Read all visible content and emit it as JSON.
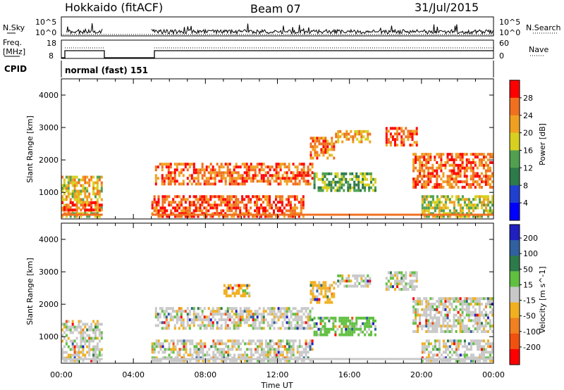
{
  "header": {
    "station": "Hokkaido (fitACF)",
    "beam": "Beam 07",
    "date": "31/Jul/2015"
  },
  "noise_panel": {
    "left_label": "N.Sky",
    "right_label": "N.Search",
    "left_ticks": [
      "10^5",
      "10^0"
    ],
    "right_ticks": [
      "10^5",
      "10^0"
    ]
  },
  "freq_panel": {
    "left_label_1": "Freq.",
    "left_label_2": "[MHz]",
    "left_ticks": [
      "18",
      "8"
    ],
    "right_ticks": [
      "60",
      "0"
    ],
    "right_label": "Nave"
  },
  "cpid_panel": {
    "label": "CPID",
    "program": "normal (fast) 151"
  },
  "chart_data": [
    {
      "type": "heatmap",
      "quantity": "Power",
      "ylabel": "Slant Range [km]",
      "yticks": [
        1000,
        2000,
        3000,
        4000
      ],
      "ylim": [
        180,
        4500
      ],
      "colorbar_label": "Power [dB]",
      "colorbar_ticks": [
        4,
        8,
        12,
        16,
        20,
        24,
        28
      ],
      "colorbar_range": [
        0,
        32
      ],
      "colorbar_colors": [
        "#0000ff",
        "#2040d0",
        "#2d7a4a",
        "#50a050",
        "#d8d020",
        "#f0a020",
        "#f07020",
        "#ff0000"
      ],
      "xticks": [
        "00:00",
        "04:00",
        "08:00",
        "12:00",
        "16:00",
        "20:00",
        "00:00"
      ],
      "data_gap_hours": [
        2.3,
        5.0
      ],
      "echo_regions": [
        {
          "t0": 0.0,
          "t1": 2.3,
          "r0": 300,
          "r1": 1600,
          "level": 20
        },
        {
          "t0": 0.0,
          "t1": 2.3,
          "r0": 500,
          "r1": 800,
          "level": 28
        },
        {
          "t0": 5.0,
          "t1": 8.0,
          "r0": 300,
          "r1": 1000,
          "level": 28
        },
        {
          "t0": 5.2,
          "t1": 14.0,
          "r0": 1300,
          "r1": 2000,
          "level": 26
        },
        {
          "t0": 8.0,
          "t1": 13.5,
          "r0": 300,
          "r1": 1000,
          "level": 27
        },
        {
          "t0": 13.8,
          "t1": 15.2,
          "r0": 2100,
          "r1": 2800,
          "level": 24
        },
        {
          "t0": 15.2,
          "t1": 17.2,
          "r0": 2600,
          "r1": 3000,
          "level": 22
        },
        {
          "t0": 14.0,
          "t1": 17.5,
          "r0": 1100,
          "r1": 1700,
          "level": 14
        },
        {
          "t0": 18.0,
          "t1": 19.8,
          "r0": 2500,
          "r1": 3100,
          "level": 26
        },
        {
          "t0": 19.5,
          "t1": 24.0,
          "r0": 1200,
          "r1": 2300,
          "level": 26
        },
        {
          "t0": 20.0,
          "t1": 24.0,
          "r0": 300,
          "r1": 1000,
          "level": 18
        }
      ]
    },
    {
      "type": "heatmap",
      "quantity": "Velocity",
      "ylabel": "Slant Range [km]",
      "yticks": [
        1000,
        2000,
        3000,
        4000
      ],
      "ylim": [
        180,
        4500
      ],
      "xlabel": "Time UT",
      "colorbar_label": "Velocity [m s^-1]",
      "colorbar_ticks": [
        "200",
        "100",
        "50",
        "15",
        "-15",
        "-50",
        "-100",
        "-200"
      ],
      "colorbar_colors": [
        "#2020c0",
        "#3060a0",
        "#2d7a4a",
        "#60c040",
        "#c8c8c8",
        "#f0b020",
        "#f08020",
        "#f05010",
        "#ff0000"
      ],
      "xticks": [
        "00:00",
        "04:00",
        "08:00",
        "12:00",
        "16:00",
        "20:00",
        "00:00"
      ],
      "data_gap_hours": [
        2.3,
        5.0
      ],
      "echo_regions": [
        {
          "t0": 0.0,
          "t1": 2.3,
          "r0": 300,
          "r1": 1600,
          "level": 0
        },
        {
          "t0": 5.0,
          "t1": 14.0,
          "r0": 300,
          "r1": 1000,
          "level": 0
        },
        {
          "t0": 5.2,
          "t1": 14.0,
          "r0": 1300,
          "r1": 2000,
          "level": 0
        },
        {
          "t0": 9.0,
          "t1": 10.5,
          "r0": 2300,
          "r1": 2700,
          "level": -30
        },
        {
          "t0": 13.8,
          "t1": 15.2,
          "r0": 2100,
          "r1": 2800,
          "level": -30
        },
        {
          "t0": 15.2,
          "t1": 17.2,
          "r0": 2600,
          "r1": 3000,
          "level": 0
        },
        {
          "t0": 14.0,
          "t1": 17.5,
          "r0": 1100,
          "r1": 1700,
          "level": 30
        },
        {
          "t0": 18.0,
          "t1": 19.8,
          "r0": 2500,
          "r1": 3100,
          "level": 0
        },
        {
          "t0": 19.5,
          "t1": 24.0,
          "r0": 1200,
          "r1": 2300,
          "level": 0
        },
        {
          "t0": 20.0,
          "t1": 24.0,
          "r0": 300,
          "r1": 1000,
          "level": 0
        }
      ]
    }
  ]
}
